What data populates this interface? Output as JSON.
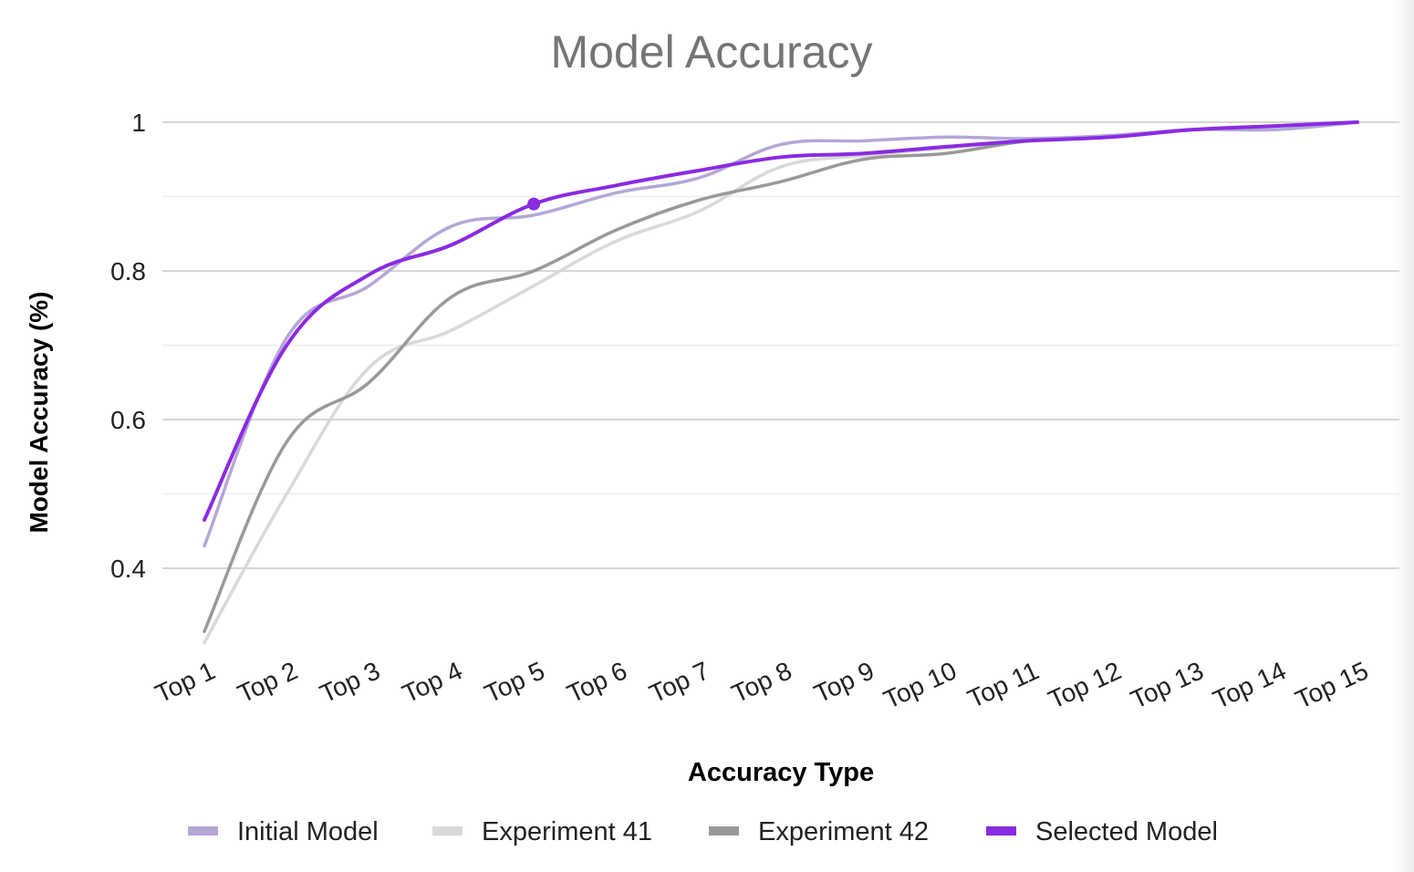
{
  "chart_data": {
    "type": "line",
    "title": "Model Accuracy",
    "xlabel": "Accuracy Type",
    "ylabel": "Model Accuracy (%)",
    "categories": [
      "Top 1",
      "Top 2",
      "Top 3",
      "Top 4",
      "Top 5",
      "Top 6",
      "Top 7",
      "Top 8",
      "Top 9",
      "Top 10",
      "Top 11",
      "Top 12",
      "Top 13",
      "Top 14",
      "Top 15"
    ],
    "y_ticks": [
      "0.4",
      "0.6",
      "0.8",
      "1"
    ],
    "ylim": [
      0.3,
      1.0
    ],
    "grid": true,
    "legend_position": "bottom",
    "series": [
      {
        "name": "Initial Model",
        "color": "#b4a7d6",
        "values": [
          0.43,
          0.71,
          0.78,
          0.86,
          0.875,
          0.905,
          0.925,
          0.97,
          0.975,
          0.98,
          0.978,
          0.982,
          0.99,
          0.99,
          1.0
        ]
      },
      {
        "name": "Experiment 41",
        "color": "#d9d9d9",
        "values": [
          0.3,
          0.5,
          0.67,
          0.72,
          0.78,
          0.84,
          0.88,
          0.94,
          0.955,
          0.965,
          0.975,
          0.98,
          0.99,
          0.995,
          1.0
        ]
      },
      {
        "name": "Experiment 42",
        "color": "#999999",
        "values": [
          0.315,
          0.57,
          0.65,
          0.765,
          0.8,
          0.855,
          0.895,
          0.92,
          0.95,
          0.958,
          0.975,
          0.982,
          0.99,
          0.995,
          1.0
        ]
      },
      {
        "name": "Selected Model",
        "color": "#8a2be2",
        "values": [
          0.465,
          0.7,
          0.795,
          0.835,
          0.89,
          0.915,
          0.935,
          0.953,
          0.958,
          0.967,
          0.975,
          0.98,
          0.99,
          0.995,
          1.0
        ]
      }
    ],
    "highlighted_point": {
      "series": "Selected Model",
      "category": "Top 5",
      "value": 0.89
    }
  }
}
